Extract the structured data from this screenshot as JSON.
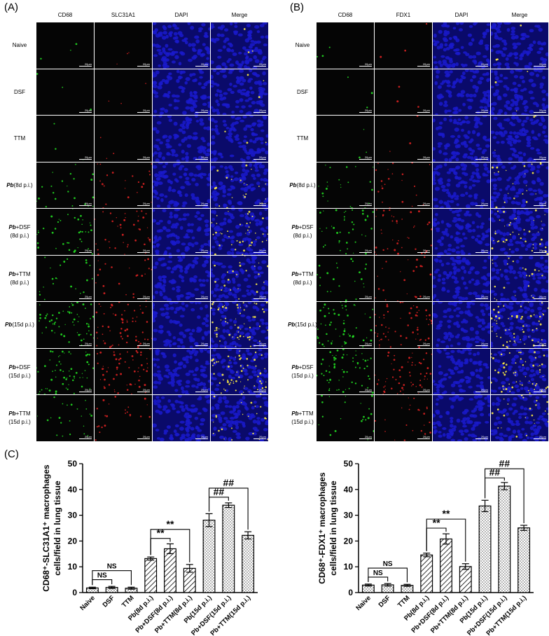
{
  "panel_letters": {
    "A": "(A)",
    "B": "(B)",
    "C": "(C)"
  },
  "panel_A": {
    "columns": [
      "CD68",
      "SLC31A1",
      "DAPI",
      "Merge"
    ],
    "scale_bar": "20μm"
  },
  "panel_B": {
    "columns": [
      "CD68",
      "FDX1",
      "DAPI",
      "Merge"
    ],
    "scale_bar": "20μm"
  },
  "rows": [
    {
      "italic": "",
      "text": "Naive",
      "line2": ""
    },
    {
      "italic": "",
      "text": "DSF",
      "line2": ""
    },
    {
      "italic": "",
      "text": "TTM",
      "line2": ""
    },
    {
      "italic": "Pb",
      "text": "(8d p.i.)",
      "line2": ""
    },
    {
      "italic": "Pb",
      "text": "+DSF",
      "line2": "(8d p.i.)"
    },
    {
      "italic": "Pb",
      "text": "+TTM",
      "line2": "(8d p.i.)"
    },
    {
      "italic": "Pb",
      "text": "(15d p.i.)",
      "line2": ""
    },
    {
      "italic": "Pb",
      "text": "+DSF",
      "line2": "(15d p.i.)"
    },
    {
      "italic": "Pb",
      "text": "+TTM",
      "line2": "(15d p.i.)"
    }
  ],
  "colors": {
    "dapi": "#1a1acc",
    "cd68": "#22dd22",
    "marker": "#dd2222",
    "merge_dot": "#ffee44"
  },
  "chart_data": [
    {
      "type": "bar",
      "ylabel_lines": [
        "CD68⁺-SLC31A1⁺ macrophages",
        "cells/field in lung tissue"
      ],
      "yticks": [
        "0",
        "10",
        "20",
        "30",
        "40",
        "50"
      ],
      "ylim": [
        0,
        50
      ],
      "categories": [
        "Naive",
        "DSF",
        "TTM",
        "Pb(8d p.i.)",
        "Pb+DSF(8d p.i.)",
        "Pb+TTM(8d p.i.)",
        "Pb(15d p.i.)",
        "Pb+DSF(15d p.i.)",
        "Pb+TTM(15d p.i.)"
      ],
      "values": [
        1.8,
        2.0,
        1.7,
        13.2,
        17.0,
        9.4,
        28.1,
        33.9,
        22.2
      ],
      "errors": [
        0.3,
        0.4,
        0.4,
        0.6,
        1.9,
        1.5,
        2.5,
        0.9,
        1.4
      ],
      "patterns": [
        "dots",
        "dots",
        "dots",
        "hatch",
        "hatch",
        "hatch",
        "dots",
        "dots",
        "dots"
      ],
      "annotations": [
        {
          "text": "NS",
          "from": 0,
          "to": 1,
          "y": 5.0
        },
        {
          "text": "NS",
          "from": 0,
          "to": 2,
          "y": 8.5
        },
        {
          "text": "**",
          "from": 3,
          "to": 4,
          "y": 21.0
        },
        {
          "text": "**",
          "from": 3,
          "to": 5,
          "y": 24.5
        },
        {
          "text": "##",
          "from": 6,
          "to": 7,
          "y": 37.0
        },
        {
          "text": "##",
          "from": 6,
          "to": 8,
          "y": 40.5
        }
      ]
    },
    {
      "type": "bar",
      "ylabel_lines": [
        "CD68⁺-FDX1⁺ macrophages",
        "cells/field in lung tissue"
      ],
      "yticks": [
        "0",
        "10",
        "20",
        "30",
        "40",
        "50"
      ],
      "ylim": [
        0,
        50
      ],
      "categories": [
        "Naive",
        "DSF",
        "TTM",
        "Pb(8d p.i.)",
        "Pb+DSF(8d p.i.)",
        "Pb+TTM(8d p.i.)",
        "Pb(15d p.i.)",
        "Pb+DSF(15d p.i.)",
        "Pb+TTM(15d p.i.)"
      ],
      "values": [
        2.9,
        3.0,
        2.8,
        14.6,
        20.8,
        10.1,
        33.6,
        41.3,
        25.1
      ],
      "errors": [
        0.4,
        0.5,
        0.4,
        0.7,
        2.0,
        1.1,
        2.2,
        1.4,
        1.0
      ],
      "patterns": [
        "dots",
        "dots",
        "dots",
        "hatch",
        "hatch",
        "hatch",
        "dots",
        "dots",
        "dots"
      ],
      "annotations": [
        {
          "text": "NS",
          "from": 0,
          "to": 1,
          "y": 6.0
        },
        {
          "text": "NS",
          "from": 0,
          "to": 2,
          "y": 9.5
        },
        {
          "text": "**",
          "from": 3,
          "to": 4,
          "y": 25.0
        },
        {
          "text": "**",
          "from": 3,
          "to": 5,
          "y": 28.5
        },
        {
          "text": "##",
          "from": 6,
          "to": 7,
          "y": 44.5
        },
        {
          "text": "##",
          "from": 6,
          "to": 8,
          "y": 48.0
        }
      ]
    }
  ]
}
